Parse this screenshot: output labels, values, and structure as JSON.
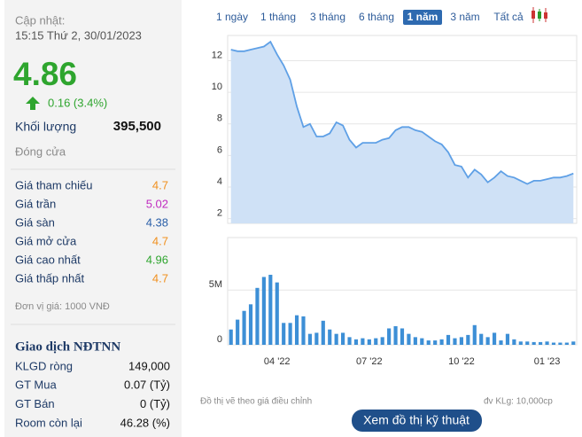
{
  "header": {
    "update_label": "Cập nhật:",
    "update_time": "15:15 Thứ 2, 30/01/2023"
  },
  "quote": {
    "price": 4.86,
    "price_color": "#2ea52e",
    "change": "0.16 (3.4%)",
    "volume_label": "Khối lượng",
    "volume": "395,500",
    "status": "Đóng cửa"
  },
  "prices": [
    {
      "label": "Giá tham chiếu",
      "value": 4.7,
      "color": "#f0901e"
    },
    {
      "label": "Giá trần",
      "value": 5.02,
      "color": "#c02bc0"
    },
    {
      "label": "Giá sàn",
      "value": 4.38,
      "color": "#2a5fa8"
    },
    {
      "label": "Giá mở cửa",
      "value": 4.7,
      "color": "#f0901e"
    },
    {
      "label": "Giá cao nhất",
      "value": 4.96,
      "color": "#2ea52e"
    },
    {
      "label": "Giá thấp nhất",
      "value": 4.7,
      "color": "#f0901e"
    }
  ],
  "unit_note": "Đơn vị giá: 1000 VNĐ",
  "foreign": {
    "title": "Giao dịch NĐTNN",
    "rows": [
      {
        "label": "KLGD ròng",
        "value": "149,000"
      },
      {
        "label": "GT Mua",
        "value": "0.07 (Tỷ)"
      },
      {
        "label": "GT Bán",
        "value": "0 (Tỷ)"
      },
      {
        "label": "Room còn lại",
        "value": "46.28 (%)"
      }
    ]
  },
  "range_buttons": {
    "items": [
      "1 ngày",
      "1 tháng",
      "3 tháng",
      "6 tháng",
      "1 năm",
      "3 năm",
      "Tất cả"
    ],
    "selected": 4
  },
  "footer": {
    "note": "Đồ thị vẽ theo giá điều chỉnh",
    "unit": "đv KLg: 10,000cp",
    "button": "Xem đồ thị kỹ thuật"
  },
  "chart_data": [
    {
      "type": "area",
      "color": "#5fa0e6",
      "fill": "#cfe1f6",
      "values": [
        12.7,
        12.6,
        12.6,
        12.7,
        12.8,
        12.9,
        13.2,
        12.4,
        11.7,
        10.8,
        9.1,
        7.8,
        8.0,
        7.2,
        7.2,
        7.4,
        8.1,
        7.9,
        7.0,
        6.5,
        6.8,
        6.8,
        6.8,
        7.0,
        7.1,
        7.6,
        7.8,
        7.8,
        7.6,
        7.5,
        7.2,
        6.9,
        6.7,
        6.2,
        5.4,
        5.3,
        4.6,
        5.1,
        4.8,
        4.3,
        4.6,
        5.0,
        4.7,
        4.6,
        4.4,
        4.2,
        4.4,
        4.4,
        4.5,
        4.6,
        4.6,
        4.7,
        4.86
      ],
      "ylim": [
        1.7,
        13.6
      ],
      "yticks": [
        2,
        4,
        6,
        8,
        10,
        12
      ],
      "grid": true
    },
    {
      "type": "bar",
      "color": "#3d8fd6",
      "categories": [
        null,
        null,
        null,
        null,
        null,
        null,
        null,
        "04 '22",
        null,
        null,
        null,
        null,
        null,
        null,
        null,
        null,
        null,
        null,
        null,
        null,
        null,
        "07 '22",
        null,
        null,
        null,
        null,
        null,
        null,
        null,
        null,
        null,
        null,
        null,
        null,
        null,
        "10 '22",
        null,
        null,
        null,
        null,
        null,
        null,
        null,
        null,
        null,
        null,
        null,
        null,
        "01 '23",
        null,
        null,
        null,
        null
      ],
      "values": [
        1400000,
        2300000,
        3100000,
        3700000,
        5200000,
        6200000,
        6400000,
        5700000,
        2000000,
        2000000,
        2700000,
        2600000,
        1000000,
        1100000,
        2200000,
        1400000,
        1000000,
        1100000,
        700000,
        500000,
        600000,
        500000,
        600000,
        700000,
        1500000,
        1700000,
        1500000,
        1000000,
        700000,
        600000,
        400000,
        400000,
        500000,
        900000,
        600000,
        700000,
        900000,
        1800000,
        1000000,
        700000,
        1100000,
        400000,
        1000000,
        500000,
        300000,
        300000,
        250000,
        250000,
        300000,
        200000,
        200000,
        200000,
        300000
      ],
      "ylim": [
        0,
        9800000
      ],
      "yticks": [
        0,
        {
          "value": 5000000,
          "label": "5M"
        }
      ],
      "grid": true
    }
  ]
}
